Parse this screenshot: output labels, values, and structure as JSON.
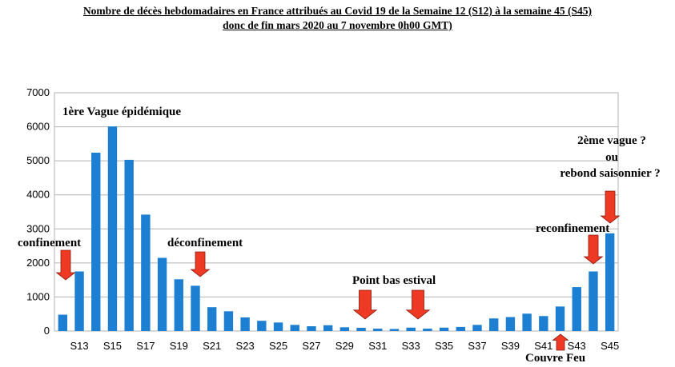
{
  "title_line1": "Nombre de décès hebdomadaires en France attribués au Covid 19 de la Semaine 12 (S12) à la semaine 45 (S45)",
  "title_line2": "donc de fin mars 2020 au 7 novembre 0h00 GMT)",
  "colors": {
    "bar": "#1c7fd1",
    "arrow": "#ee3a24",
    "grid": "#b3b3b3"
  },
  "chart_data": {
    "type": "bar",
    "title": "Nombre de décès hebdomadaires en France attribués au Covid 19 de la Semaine 12 (S12) à la semaine 45 (S45)",
    "categories": [
      "S12",
      "S13",
      "S14",
      "S15",
      "S16",
      "S17",
      "S18",
      "S19",
      "S20",
      "S21",
      "S22",
      "S23",
      "S24",
      "S25",
      "S26",
      "S27",
      "S28",
      "S29",
      "S30",
      "S31",
      "S32",
      "S33",
      "S34",
      "S35",
      "S36",
      "S37",
      "S38",
      "S39",
      "S40",
      "S41",
      "S42",
      "S43",
      "S44",
      "S45"
    ],
    "tick_labels": [
      "S13",
      "S15",
      "S17",
      "S19",
      "S21",
      "S23",
      "S25",
      "S27",
      "S29",
      "S31",
      "S33",
      "S35",
      "S37",
      "S39",
      "S41",
      "S43",
      "S45"
    ],
    "values": [
      480,
      1750,
      5240,
      6010,
      5030,
      3420,
      2150,
      1520,
      1330,
      700,
      580,
      400,
      300,
      250,
      180,
      140,
      170,
      110,
      95,
      70,
      60,
      100,
      70,
      100,
      120,
      180,
      370,
      410,
      510,
      440,
      720,
      1290,
      1750,
      2870
    ],
    "ylim": [
      0,
      7000
    ],
    "yticks": [
      0,
      1000,
      2000,
      3000,
      4000,
      5000,
      6000,
      7000
    ],
    "grid": true,
    "legend": "none"
  },
  "annotations": {
    "wave1": "1ère Vague épidémique",
    "confinement": "confinement",
    "deconfinement": "déconfinement",
    "point_bas": "Point bas estival",
    "wave2": "2ème vague ?",
    "ou": "ou",
    "rebond": "rebond saisonnier ?",
    "reconfinement": "reconfinement",
    "couvre_feu": "Couvre Feu"
  }
}
